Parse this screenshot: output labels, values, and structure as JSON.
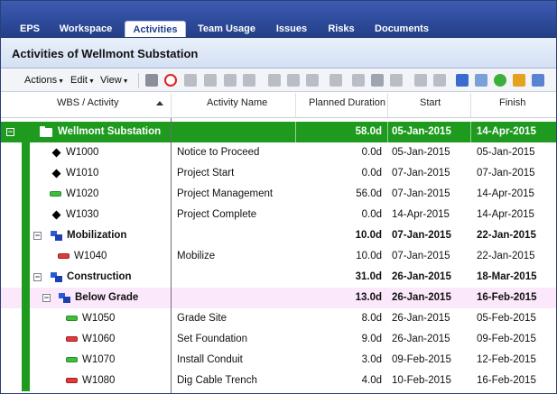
{
  "nav": {
    "tabs": [
      {
        "label": "EPS",
        "active": false
      },
      {
        "label": "Workspace",
        "active": false
      },
      {
        "label": "Activities",
        "active": true
      },
      {
        "label": "Team Usage",
        "active": false
      },
      {
        "label": "Issues",
        "active": false
      },
      {
        "label": "Risks",
        "active": false
      },
      {
        "label": "Documents",
        "active": false
      }
    ]
  },
  "header": {
    "title": "Activities of Wellmont Substation"
  },
  "toolbar": {
    "menus": [
      "Actions",
      "Edit",
      "View"
    ],
    "icons": [
      "save-icon",
      "cancel-icon",
      "assign-icon",
      "delete-icon",
      "link-icon",
      "resource-icon",
      "resource-remove-icon",
      "tree-icon",
      "step-icon",
      "lock-icon",
      "copy-icon",
      "code-icon",
      "relationship-icon",
      "home-icon",
      "schedule-icon",
      "level-icon",
      "check-icon",
      "filter-icon",
      "print-icon"
    ]
  },
  "columns": {
    "wbs": "WBS / Activity",
    "name": "Activity Name",
    "duration": "Planned Duration",
    "start": "Start",
    "finish": "Finish"
  },
  "rows": [
    {
      "kind": "project",
      "level": 0,
      "icon": "folder-icon",
      "toggle": "−",
      "id": "Wellmont Substation",
      "name": "",
      "duration": "58.0d",
      "start": "05-Jan-2015",
      "finish": "14-Apr-2015"
    },
    {
      "kind": "activity",
      "level": 1,
      "icon": "milestone-icon",
      "id": "W1000",
      "name": "Notice to Proceed",
      "duration": "0.0d",
      "start": "05-Jan-2015",
      "finish": "05-Jan-2015"
    },
    {
      "kind": "activity",
      "level": 1,
      "icon": "milestone-icon",
      "id": "W1010",
      "name": "Project Start",
      "duration": "0.0d",
      "start": "07-Jan-2015",
      "finish": "07-Jan-2015"
    },
    {
      "kind": "activity",
      "level": 1,
      "icon": "activity-inprogress-icon",
      "id": "W1020",
      "name": "Project Management",
      "duration": "56.0d",
      "start": "07-Jan-2015",
      "finish": "14-Apr-2015"
    },
    {
      "kind": "activity",
      "level": 1,
      "icon": "milestone-icon",
      "id": "W1030",
      "name": "Project Complete",
      "duration": "0.0d",
      "start": "14-Apr-2015",
      "finish": "14-Apr-2015"
    },
    {
      "kind": "wbs",
      "level": 1,
      "icon": "wbs-icon",
      "toggle": "−",
      "id": "Mobilization",
      "name": "",
      "duration": "10.0d",
      "start": "07-Jan-2015",
      "finish": "22-Jan-2015"
    },
    {
      "kind": "activity",
      "level": 2,
      "icon": "activity-notstarted-icon",
      "id": "W1040",
      "name": "Mobilize",
      "duration": "10.0d",
      "start": "07-Jan-2015",
      "finish": "22-Jan-2015"
    },
    {
      "kind": "wbs",
      "level": 1,
      "icon": "wbs-icon",
      "toggle": "−",
      "id": "Construction",
      "name": "",
      "duration": "31.0d",
      "start": "26-Jan-2015",
      "finish": "18-Mar-2015"
    },
    {
      "kind": "wbs2",
      "level": 2,
      "icon": "wbs-icon",
      "toggle": "−",
      "id": "Below Grade",
      "name": "",
      "duration": "13.0d",
      "start": "26-Jan-2015",
      "finish": "16-Feb-2015"
    },
    {
      "kind": "activity",
      "level": 3,
      "icon": "activity-inprogress-icon",
      "id": "W1050",
      "name": "Grade Site",
      "duration": "8.0d",
      "start": "26-Jan-2015",
      "finish": "05-Feb-2015"
    },
    {
      "kind": "activity",
      "level": 3,
      "icon": "activity-notstarted-icon",
      "id": "W1060",
      "name": "Set Foundation",
      "duration": "9.0d",
      "start": "26-Jan-2015",
      "finish": "09-Feb-2015"
    },
    {
      "kind": "activity",
      "level": 3,
      "icon": "activity-inprogress-icon",
      "id": "W1070",
      "name": "Install Conduit",
      "duration": "3.0d",
      "start": "09-Feb-2015",
      "finish": "12-Feb-2015"
    },
    {
      "kind": "activity",
      "level": 3,
      "icon": "activity-notstarted-icon",
      "id": "W1080",
      "name": "Dig Cable Trench",
      "duration": "4.0d",
      "start": "10-Feb-2015",
      "finish": "16-Feb-2015"
    }
  ],
  "colors": {
    "project_green": "#1e9a1e",
    "nav_blue": "#2d4a9a",
    "in_progress": "#3cc03c",
    "not_started": "#e23a3a",
    "wbs_blue": "#1d3fb0"
  }
}
